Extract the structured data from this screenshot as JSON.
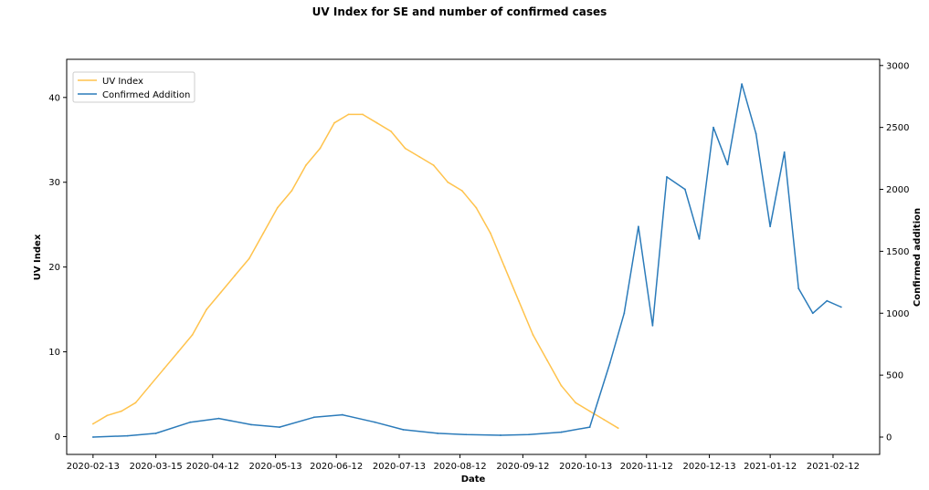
{
  "chart_data": {
    "type": "line",
    "title": "UV Index for SE and number of confirmed cases",
    "xlabel": "Date",
    "ylabel_left": "UV Index",
    "ylabel_right": "Confirmed addition",
    "x_tick_labels": [
      "2020-02-13",
      "2020-03-15",
      "2020-04-12",
      "2020-05-13",
      "2020-06-12",
      "2020-07-13",
      "2020-08-12",
      "2020-09-12",
      "2020-10-13",
      "2020-11-12",
      "2020-12-13",
      "2021-01-12",
      "2021-02-12"
    ],
    "x_tick_dates": [
      "2020-02-13",
      "2020-03-15",
      "2020-04-12",
      "2020-05-13",
      "2020-06-12",
      "2020-07-13",
      "2020-08-12",
      "2020-09-12",
      "2020-10-13",
      "2020-11-12",
      "2020-12-13",
      "2021-01-12",
      "2021-02-12"
    ],
    "xlim": [
      "2020-01-31",
      "2021-03-07"
    ],
    "ylim_left": [
      -2.1,
      44.5
    ],
    "yticks_left": [
      0,
      10,
      20,
      30,
      40
    ],
    "ylim_right": [
      -140,
      3050
    ],
    "yticks_right": [
      0,
      500,
      1000,
      1500,
      2000,
      2500,
      3000
    ],
    "grid": false,
    "legend_position": "upper-left",
    "colors": {
      "uv": "#ffc34d",
      "confirmed": "#2b7bba"
    },
    "series": [
      {
        "name": "UV Index",
        "axis": "left",
        "color": "#ffc34d",
        "x": [
          "2020-02-13",
          "2020-02-20",
          "2020-02-27",
          "2020-03-05",
          "2020-03-12",
          "2020-03-19",
          "2020-03-26",
          "2020-04-02",
          "2020-04-09",
          "2020-04-16",
          "2020-04-23",
          "2020-04-30",
          "2020-05-07",
          "2020-05-14",
          "2020-05-21",
          "2020-05-28",
          "2020-06-04",
          "2020-06-11",
          "2020-06-18",
          "2020-06-25",
          "2020-07-02",
          "2020-07-09",
          "2020-07-16",
          "2020-07-23",
          "2020-07-30",
          "2020-08-06",
          "2020-08-13",
          "2020-08-20",
          "2020-08-27",
          "2020-09-03",
          "2020-09-10",
          "2020-09-17",
          "2020-09-24",
          "2020-10-01",
          "2020-10-08",
          "2020-10-15",
          "2020-10-22",
          "2020-10-29"
        ],
        "y": [
          1.5,
          2.5,
          3,
          4,
          6,
          8,
          10,
          12,
          15,
          17,
          19,
          21,
          24,
          27,
          29,
          32,
          34,
          37,
          38,
          38,
          37,
          36,
          34,
          33,
          32,
          30,
          29,
          27,
          24,
          20,
          16,
          12,
          9,
          6,
          4,
          3,
          2,
          1
        ]
      },
      {
        "name": "Confirmed Addition",
        "axis": "right",
        "color": "#2b7bba",
        "x": [
          "2020-02-13",
          "2020-03-01",
          "2020-03-15",
          "2020-04-01",
          "2020-04-15",
          "2020-05-01",
          "2020-05-15",
          "2020-06-01",
          "2020-06-15",
          "2020-07-01",
          "2020-07-15",
          "2020-08-01",
          "2020-08-15",
          "2020-09-01",
          "2020-09-15",
          "2020-10-01",
          "2020-10-15",
          "2020-10-25",
          "2020-11-01",
          "2020-11-08",
          "2020-11-15",
          "2020-11-22",
          "2020-12-01",
          "2020-12-08",
          "2020-12-15",
          "2020-12-22",
          "2020-12-29",
          "2021-01-05",
          "2021-01-12",
          "2021-01-19",
          "2021-01-26",
          "2021-02-02",
          "2021-02-09",
          "2021-02-16"
        ],
        "y": [
          0,
          10,
          30,
          120,
          150,
          100,
          80,
          160,
          180,
          120,
          60,
          30,
          20,
          15,
          20,
          40,
          80,
          600,
          1000,
          1700,
          900,
          2100,
          2000,
          1600,
          2500,
          2200,
          2850,
          2450,
          1700,
          2300,
          1200,
          1000,
          1100,
          1050
        ]
      }
    ]
  }
}
